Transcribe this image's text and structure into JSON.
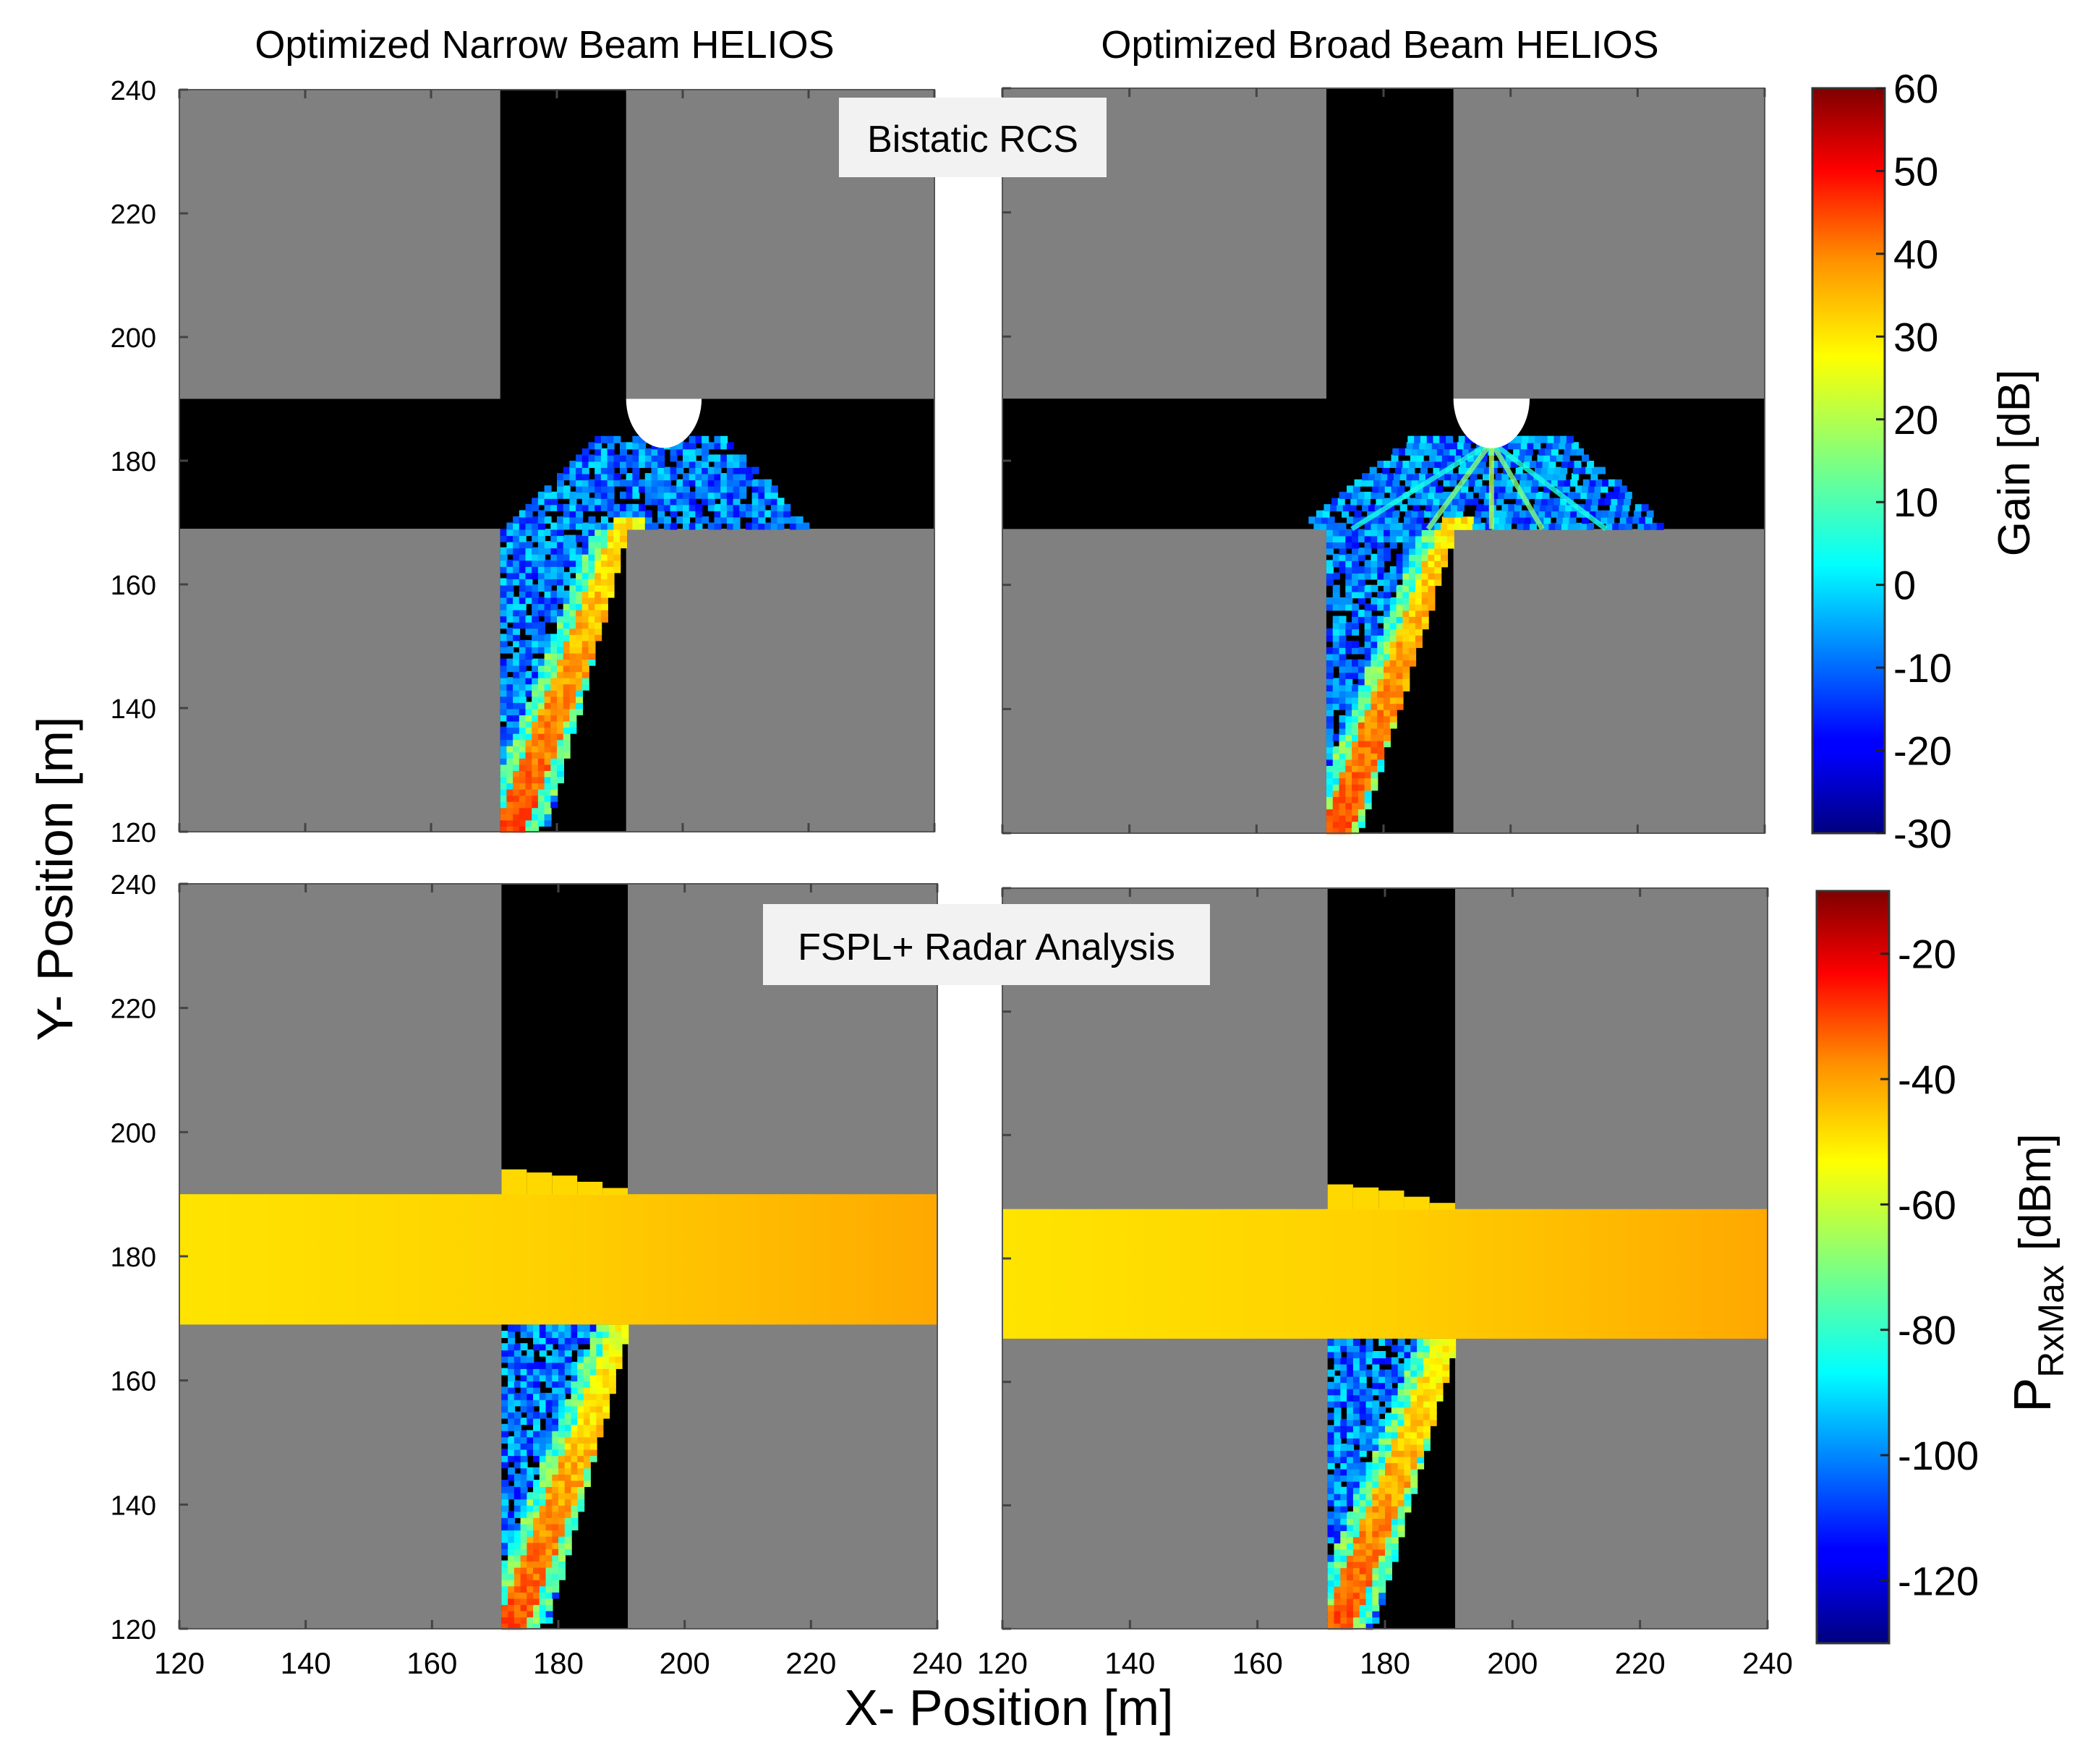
{
  "chart_data": [
    {
      "type": "heatmap",
      "panel": "top-left",
      "column_title": "Optimized Narrow Beam HELIOS",
      "xlim": [
        120,
        240
      ],
      "ylim": [
        120,
        240
      ],
      "yticks": [
        240,
        220,
        200,
        180,
        160,
        140,
        120
      ],
      "banner": "Bistatic RCS",
      "beam": {
        "spread": "narrow",
        "streak_from": [
          196,
          183
        ],
        "streak_to": [
          172,
          120
        ]
      },
      "colorbar_ref": 0
    },
    {
      "type": "heatmap",
      "panel": "top-right",
      "column_title": "Optimized Broad Beam HELIOS",
      "xlim": [
        120,
        240
      ],
      "ylim": [
        120,
        240
      ],
      "beam": {
        "spread": "broad",
        "streak_from": [
          196,
          183
        ],
        "streak_to": [
          172,
          120
        ]
      },
      "colorbar_ref": 0
    },
    {
      "type": "heatmap",
      "panel": "bottom-left",
      "xlim": [
        120,
        240
      ],
      "ylim": [
        120,
        240
      ],
      "yticks": [
        240,
        220,
        200,
        180,
        160,
        140,
        120
      ],
      "xticks": [
        120,
        140,
        160,
        180,
        200,
        220,
        240
      ],
      "banner": "FSPL+ Radar Analysis",
      "band": {
        "y_range": [
          169,
          190
        ],
        "value_left_dBm": -58,
        "value_right_dBm": -44
      },
      "colorbar_ref": 1
    },
    {
      "type": "heatmap",
      "panel": "bottom-right",
      "xlim": [
        120,
        240
      ],
      "ylim": [
        120,
        240
      ],
      "xticks": [
        120,
        140,
        160,
        180,
        200,
        220,
        240
      ],
      "band": {
        "y_range": [
          167,
          188
        ],
        "value_left_dBm": -58,
        "value_right_dBm": -44
      },
      "colorbar_ref": 1
    }
  ],
  "colorbars": [
    {
      "title": "Gain [dB]",
      "range": [
        -30,
        60
      ],
      "ticks": [
        60,
        50,
        40,
        30,
        20,
        10,
        0,
        -10,
        -20,
        -30
      ],
      "colormap": "jet"
    },
    {
      "title_main": "P",
      "title_sub": "RxMax",
      "title_unit": "[dBm]",
      "range": [
        -130,
        -10
      ],
      "ticks": [
        -20,
        -40,
        -60,
        -80,
        -100,
        -120
      ],
      "colormap": "jet"
    }
  ],
  "xlabel": "X- Position [m]",
  "ylabel": "Y- Position [m]",
  "colors": {
    "building": "#808080",
    "street": "#000000",
    "band_left": "#ffe400",
    "band_right": "#ffa800"
  }
}
